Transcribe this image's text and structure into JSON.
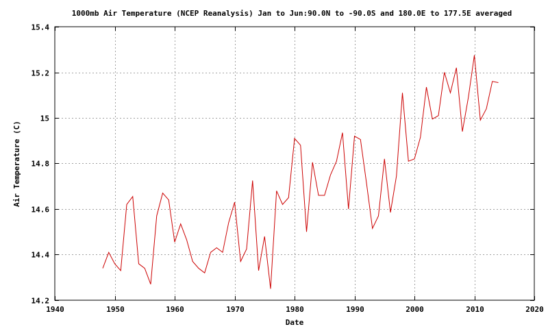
{
  "chart_data": {
    "type": "line",
    "title": "1000mb Air Temperature (NCEP Reanalysis) Jan to Jun:90.0N to -90.0S and 180.0E to 177.5E averaged",
    "xlabel": "Date",
    "ylabel": "Air Temperature (C)",
    "xlim": [
      1940,
      2020
    ],
    "ylim": [
      14.2,
      15.4
    ],
    "x_ticks": [
      1940,
      1950,
      1960,
      1970,
      1980,
      1990,
      2000,
      2010,
      2020
    ],
    "x_tick_labels": [
      "1940",
      "1950",
      "1960",
      "1970",
      "1980",
      "1990",
      "2000",
      "2010",
      "2020"
    ],
    "y_ticks": [
      14.2,
      14.4,
      14.6,
      14.8,
      15.0,
      15.2,
      15.4
    ],
    "y_tick_labels": [
      "14.2",
      "14.4",
      "14.6",
      "14.8",
      "15",
      "15.2",
      "15.4"
    ],
    "grid": true,
    "line_color": "#cc0000",
    "series": [
      {
        "x": [
          1948,
          1949,
          1950,
          1951,
          1952,
          1953,
          1954,
          1955,
          1956,
          1957,
          1958,
          1959,
          1960,
          1961,
          1962,
          1963,
          1964,
          1965,
          1966,
          1967,
          1968,
          1969,
          1970,
          1971,
          1972,
          1973,
          1974,
          1975,
          1976,
          1977,
          1978,
          1979,
          1980,
          1981,
          1982,
          1983,
          1984,
          1985,
          1986,
          1987,
          1988,
          1989,
          1990,
          1991,
          1992,
          1993,
          1994,
          1995,
          1996,
          1997,
          1998,
          1999,
          2000,
          2001,
          2002,
          2003,
          2004,
          2005,
          2006,
          2007,
          2008,
          2009,
          2010,
          2011,
          2012,
          2013,
          2014
        ],
        "values": [
          14.34,
          14.41,
          14.36,
          14.33,
          14.62,
          14.655,
          14.36,
          14.34,
          14.27,
          14.57,
          14.67,
          14.64,
          14.455,
          14.535,
          14.465,
          14.37,
          14.34,
          14.32,
          14.41,
          14.43,
          14.41,
          14.54,
          14.63,
          14.37,
          14.425,
          14.725,
          14.33,
          14.48,
          14.25,
          14.68,
          14.62,
          14.65,
          14.91,
          14.88,
          14.5,
          14.805,
          14.66,
          14.66,
          14.75,
          14.81,
          14.935,
          14.6,
          14.92,
          14.905,
          14.715,
          14.515,
          14.57,
          14.82,
          14.585,
          14.745,
          15.11,
          14.81,
          14.82,
          14.915,
          15.135,
          14.995,
          15.01,
          15.2,
          15.11,
          15.22,
          14.94,
          15.09,
          15.275,
          14.99,
          15.04,
          15.16,
          15.155
        ]
      }
    ]
  }
}
